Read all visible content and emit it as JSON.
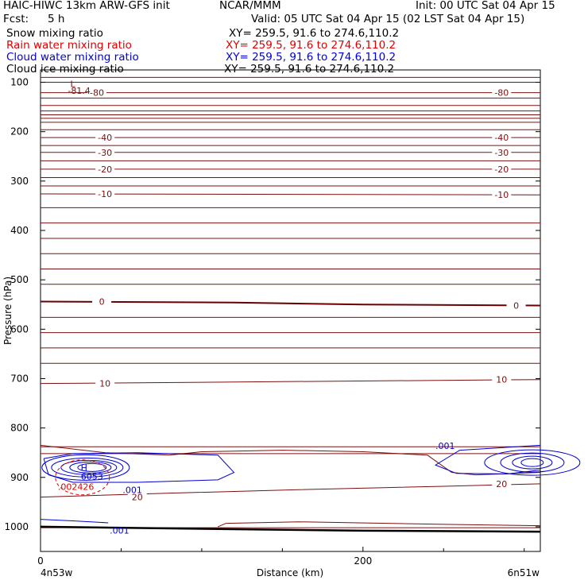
{
  "header": {
    "model": "HAIC-HIWC 13km ARW-GFS init",
    "org": "NCAR/MMM",
    "init": "Init: 00 UTC Sat 04 Apr 15",
    "fcst_label": "Fcst:",
    "fcst_value": "5 h",
    "valid": "Valid: 05 UTC Sat 04 Apr 15 (02 LST Sat 04 Apr 15)"
  },
  "fields": [
    {
      "name": "Snow mixing ratio",
      "xy": "XY= 259.5, 91.6 to 274.6,110.2",
      "color": "#000000"
    },
    {
      "name": "Rain water mixing ratio",
      "xy": "XY= 259.5, 91.6 to 274.6,110.2",
      "color": "#e00000"
    },
    {
      "name": "Cloud water mixing ratio",
      "xy": "XY= 259.5, 91.6 to 274.6,110.2",
      "color": "#0000e0"
    },
    {
      "name": "Cloud ice mixing ratio",
      "xy": "XY= 259.5, 91.6 to 274.6,110.2",
      "color": "#000000"
    }
  ],
  "chart_data": {
    "type": "line",
    "xlabel": "Distance (km)",
    "ylabel": "Pressure (hPa)",
    "xlim": [
      0,
      310
    ],
    "ylim": [
      1050,
      75
    ],
    "y_ticks": [
      100,
      200,
      300,
      400,
      500,
      600,
      700,
      800,
      900,
      1000
    ],
    "x_ticks": [
      0,
      200
    ],
    "x_endpoint_labels": [
      "4n53w",
      "6n51w"
    ],
    "colors": {
      "temperature": "#7a1010",
      "freezing": "#6a0000",
      "cloud": "#0000d0",
      "rain": "#e00000",
      "ground": "#000000"
    },
    "temperature_contours": [
      {
        "level": -80,
        "label": "-80",
        "points": [
          [
            0,
            121
          ],
          [
            310,
            121
          ]
        ]
      },
      {
        "level": -40,
        "label": "-40",
        "points": [
          [
            0,
            212
          ],
          [
            310,
            212
          ]
        ]
      },
      {
        "level": -30,
        "label": "-30",
        "points": [
          [
            0,
            242
          ],
          [
            310,
            242
          ]
        ]
      },
      {
        "level": -20,
        "label": "-20",
        "points": [
          [
            0,
            276
          ],
          [
            310,
            276
          ]
        ]
      },
      {
        "level": -10,
        "label": "-10",
        "points": [
          [
            0,
            326
          ],
          [
            310,
            328
          ]
        ]
      },
      {
        "level": 0,
        "label": "0",
        "points": [
          [
            0,
            544
          ],
          [
            120,
            546
          ],
          [
            200,
            550
          ],
          [
            310,
            552
          ]
        ]
      },
      {
        "level": 10,
        "label": "10",
        "points": [
          [
            0,
            710
          ],
          [
            310,
            702
          ]
        ]
      },
      {
        "level": 20,
        "label": "20",
        "points": [
          [
            0,
            940
          ],
          [
            80,
            932
          ],
          [
            160,
            925
          ],
          [
            250,
            918
          ],
          [
            310,
            913
          ]
        ]
      }
    ],
    "unlabeled_contours": [
      90,
      100,
      132,
      147,
      158,
      166,
      173,
      181,
      196,
      228,
      259,
      293,
      310,
      354,
      385,
      416,
      447,
      478,
      509,
      576,
      607,
      638,
      669,
      838,
      852,
      1002
    ],
    "low_center": {
      "label": "L",
      "value": "-81.4",
      "x": 20,
      "p": 90
    },
    "high_center": {
      "label": "H",
      "value": "6053",
      "x": 27,
      "p": 880
    },
    "cloud_labels": [
      ".001",
      ".001",
      ".001"
    ],
    "rain_label": ".002426",
    "surface_pressure": [
      [
        0,
        1000
      ],
      [
        120,
        1005
      ],
      [
        200,
        1008
      ],
      [
        310,
        1010
      ]
    ]
  }
}
